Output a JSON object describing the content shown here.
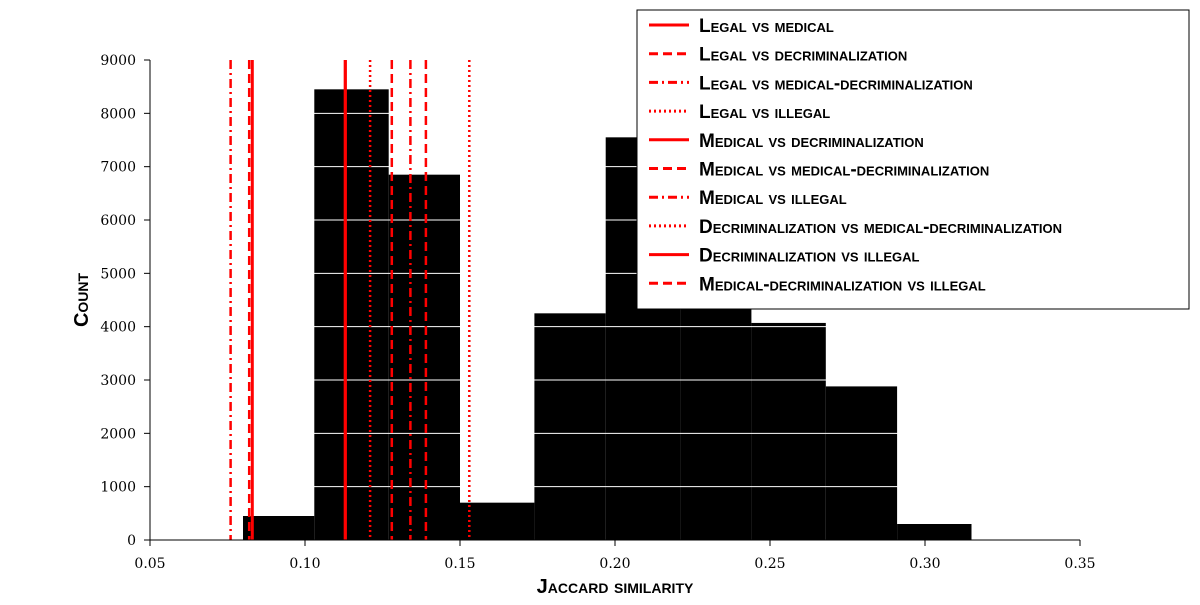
{
  "chart_data": {
    "type": "bar",
    "title": "",
    "xlabel": "Jaccard similarity",
    "ylabel": "Count",
    "xlim": [
      0.05,
      0.35
    ],
    "ylim": [
      0,
      9000
    ],
    "xticks": [
      "0.05",
      "0.10",
      "0.15",
      "0.20",
      "0.25",
      "0.30",
      "0.35"
    ],
    "yticks": [
      "0",
      "1000",
      "2000",
      "3000",
      "4000",
      "5000",
      "6000",
      "7000",
      "8000",
      "9000"
    ],
    "grid": "horizontal white lines over bars",
    "legend_placement": "top-right",
    "histogram": {
      "bins": [
        {
          "x0": 0.08,
          "x1": 0.103,
          "count": 450
        },
        {
          "x0": 0.103,
          "x1": 0.127,
          "count": 8450
        },
        {
          "x0": 0.127,
          "x1": 0.15,
          "count": 6850
        },
        {
          "x0": 0.15,
          "x1": 0.174,
          "count": 700
        },
        {
          "x0": 0.174,
          "x1": 0.197,
          "count": 4250
        },
        {
          "x0": 0.197,
          "x1": 0.221,
          "count": 7550
        },
        {
          "x0": 0.221,
          "x1": 0.244,
          "count": 7300
        },
        {
          "x0": 0.244,
          "x1": 0.268,
          "count": 4070
        },
        {
          "x0": 0.268,
          "x1": 0.291,
          "count": 2880
        },
        {
          "x0": 0.291,
          "x1": 0.315,
          "count": 300
        }
      ],
      "color": "#000000"
    },
    "series": [
      {
        "name": "Legal vs medical",
        "x": 0.083,
        "style": "solid",
        "color": "#ff0000"
      },
      {
        "name": "Legal vs decriminalization",
        "x": 0.139,
        "style": "dashed",
        "color": "#ff0000"
      },
      {
        "name": "Legal vs medical-decriminalization",
        "x": 0.076,
        "style": "dashdot",
        "color": "#ff0000"
      },
      {
        "name": "Legal vs illegal",
        "x": 0.121,
        "style": "dotted",
        "color": "#ff0000"
      },
      {
        "name": "Medical vs decriminalization",
        "x": 0.113,
        "style": "solid",
        "color": "#ff0000"
      },
      {
        "name": "Medical vs medical-decriminalization",
        "x": 0.128,
        "style": "dashed",
        "color": "#ff0000"
      },
      {
        "name": "Medical vs illegal",
        "x": 0.134,
        "style": "dashdot",
        "color": "#ff0000"
      },
      {
        "name": "Decriminalization vs medical-decriminalization",
        "x": 0.153,
        "style": "dotted",
        "color": "#ff0000"
      },
      {
        "name": "Decriminalization vs illegal",
        "x": 0.113,
        "style": "solid",
        "color": "#ff0000"
      },
      {
        "name": "Medical-decriminalization vs illegal",
        "x": 0.082,
        "style": "dashed",
        "color": "#ff0000"
      }
    ]
  }
}
